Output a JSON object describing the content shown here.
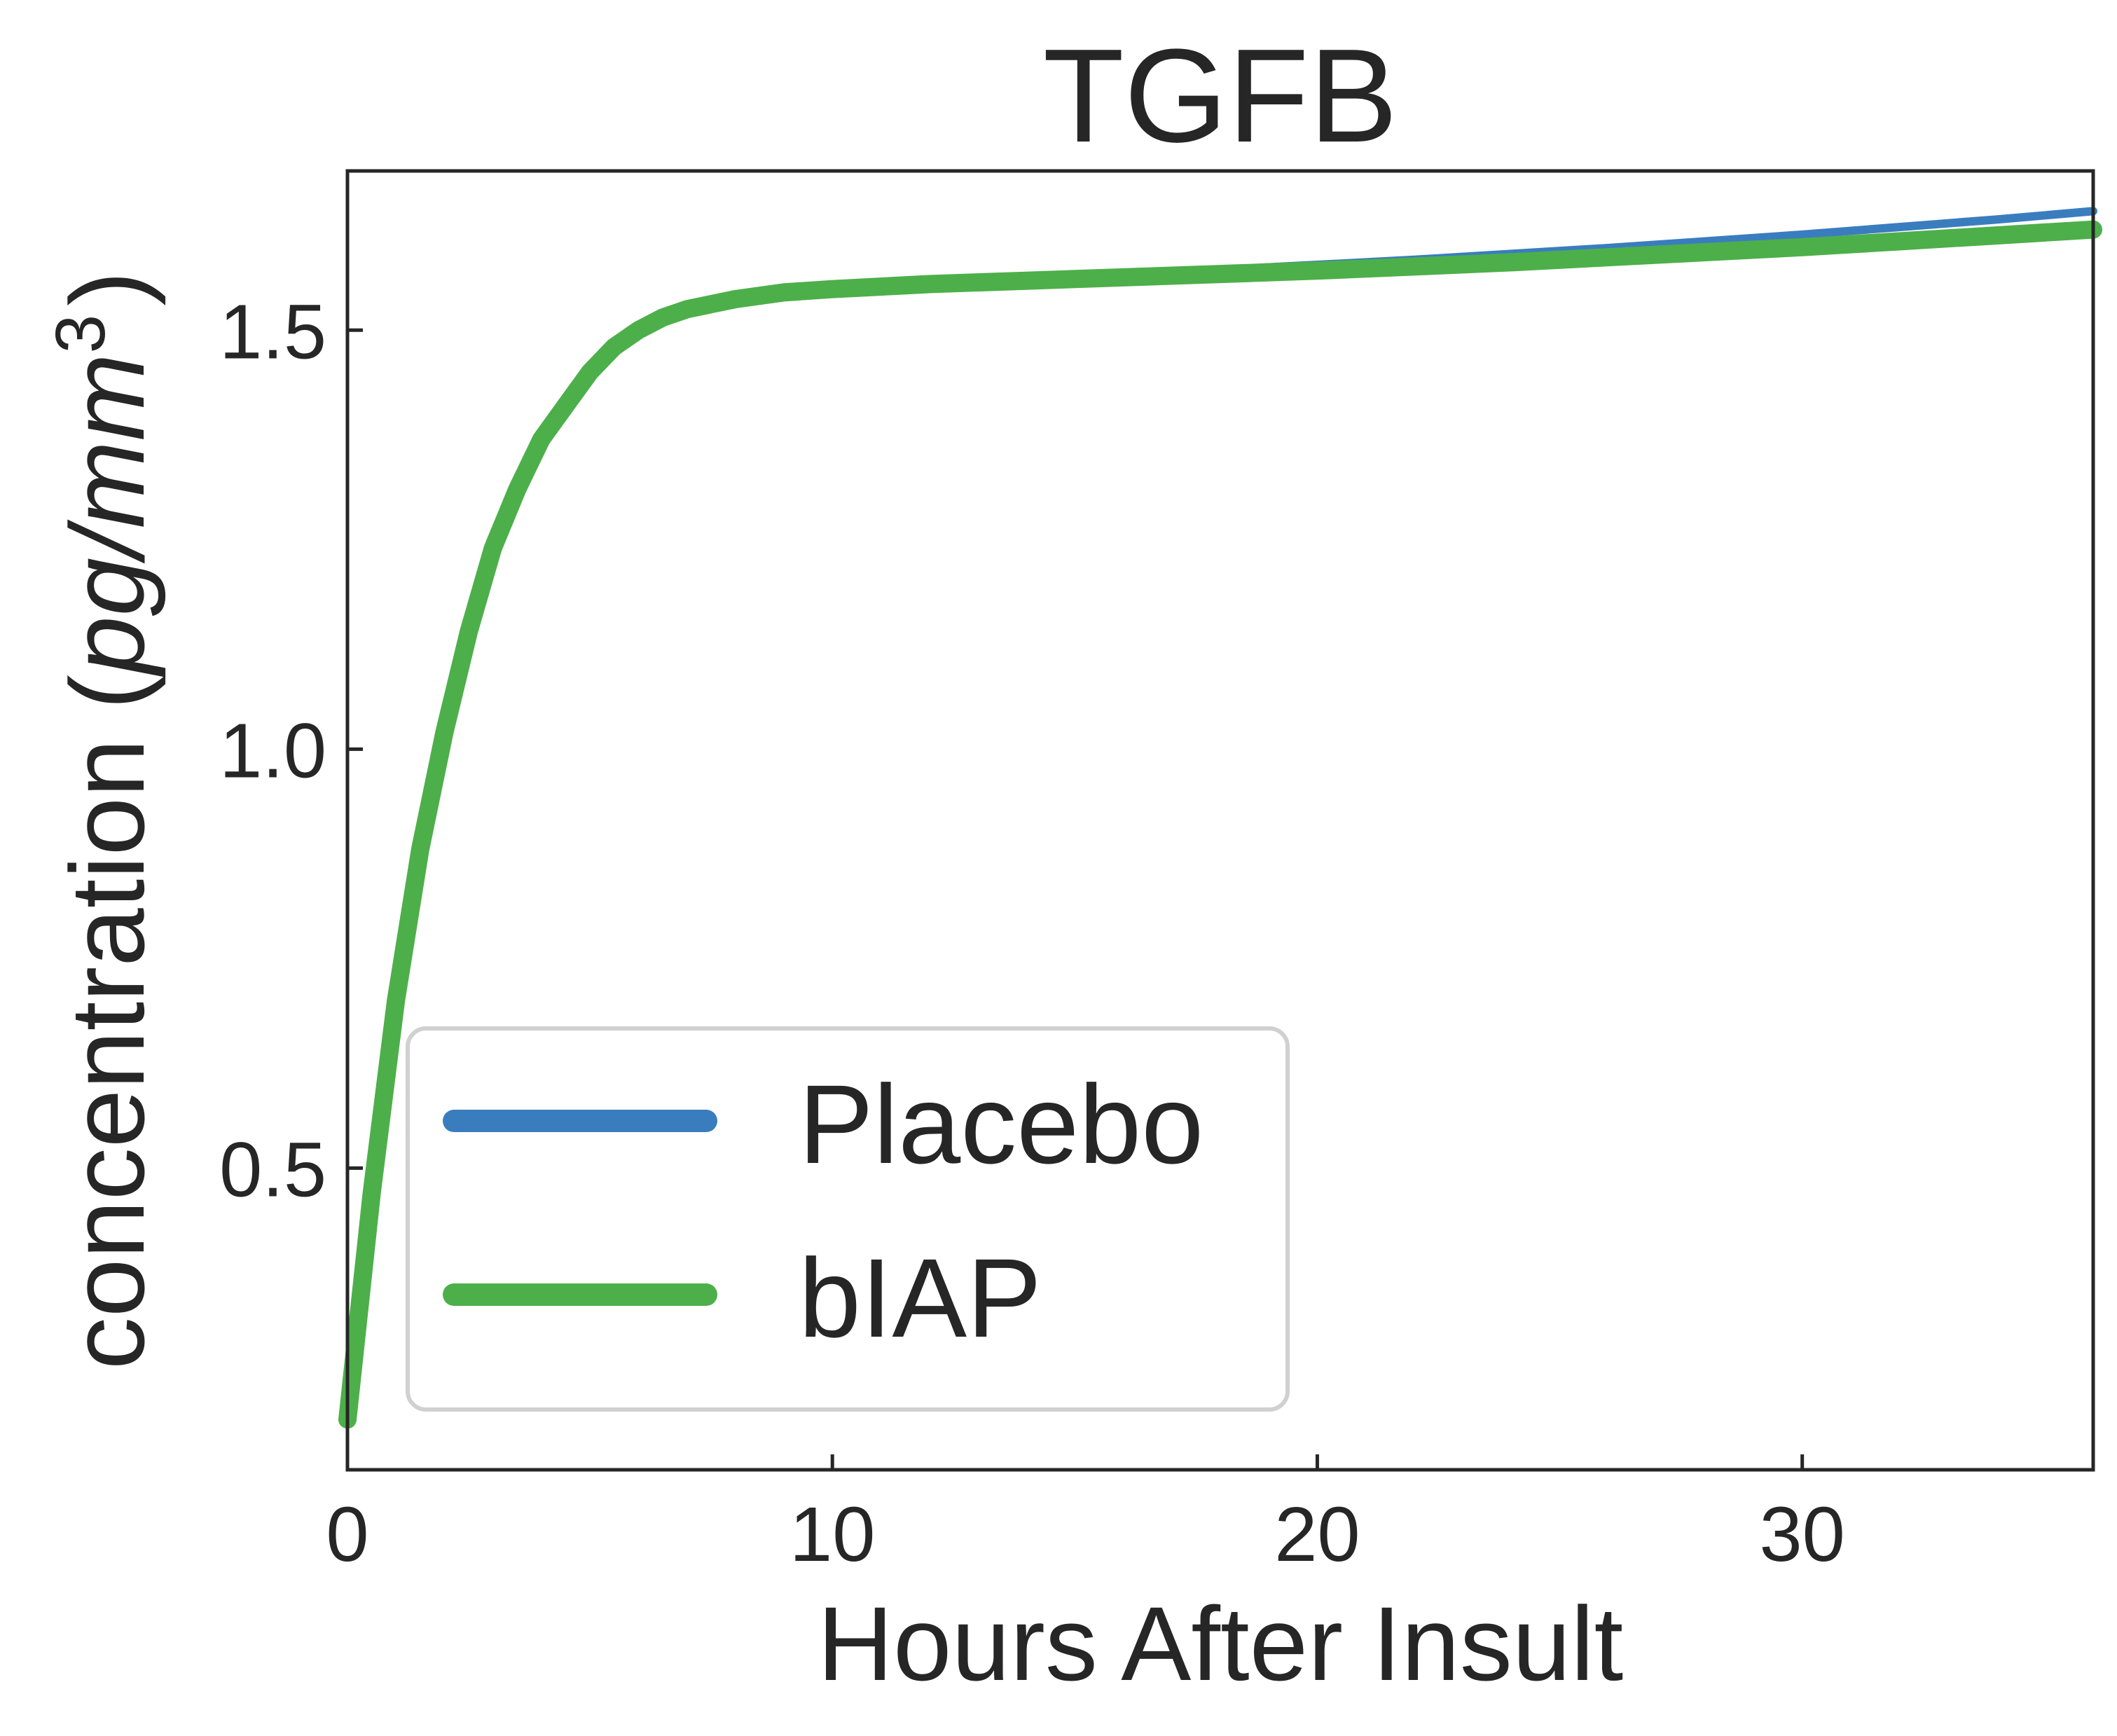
{
  "chart_data": {
    "type": "line",
    "title": "TGFB",
    "xlabel": "Hours After Insult",
    "ylabel": {
      "main": "concentration (",
      "italic": "pg/mm",
      "superscript": "3",
      "close": ")"
    },
    "xlim": [
      0,
      36
    ],
    "ylim": [
      0.14,
      1.69
    ],
    "x_ticks": [
      {
        "value": 0,
        "label": "0"
      },
      {
        "value": 10,
        "label": "10"
      },
      {
        "value": 20,
        "label": "20"
      },
      {
        "value": 30,
        "label": "30"
      }
    ],
    "y_ticks": [
      {
        "value": 0.5,
        "label": "0.5"
      },
      {
        "value": 1.0,
        "label": "1.0"
      },
      {
        "value": 1.5,
        "label": "1.5"
      }
    ],
    "grid": false,
    "legend_position": "lower-left",
    "series": [
      {
        "name": "Placebo",
        "color": "#3a7dbf",
        "x": [
          0,
          0.5,
          1,
          1.5,
          2,
          2.5,
          3,
          3.5,
          4,
          4.5,
          5,
          5.5,
          6,
          6.5,
          7,
          8,
          9,
          10,
          11,
          12,
          14,
          16,
          18,
          20,
          22,
          24,
          26,
          28,
          30,
          32,
          34,
          36
        ],
        "y": [
          0.2,
          0.47,
          0.7,
          0.88,
          1.02,
          1.14,
          1.24,
          1.31,
          1.37,
          1.41,
          1.45,
          1.48,
          1.5,
          1.515,
          1.525,
          1.537,
          1.545,
          1.55,
          1.554,
          1.557,
          1.562,
          1.567,
          1.572,
          1.578,
          1.584,
          1.591,
          1.598,
          1.606,
          1.614,
          1.623,
          1.632,
          1.642
        ]
      },
      {
        "name": "bIAP",
        "color": "#4daf4a",
        "x": [
          0,
          0.5,
          1,
          1.5,
          2,
          2.5,
          3,
          3.5,
          4,
          4.5,
          5,
          5.5,
          6,
          6.5,
          7,
          8,
          9,
          10,
          11,
          12,
          14,
          16,
          18,
          20,
          22,
          24,
          26,
          28,
          30,
          32,
          34,
          36
        ],
        "y": [
          0.2,
          0.47,
          0.7,
          0.88,
          1.02,
          1.14,
          1.24,
          1.31,
          1.37,
          1.41,
          1.45,
          1.48,
          1.5,
          1.515,
          1.525,
          1.537,
          1.545,
          1.549,
          1.552,
          1.555,
          1.559,
          1.563,
          1.567,
          1.571,
          1.576,
          1.581,
          1.587,
          1.593,
          1.599,
          1.606,
          1.613,
          1.62
        ]
      }
    ]
  }
}
